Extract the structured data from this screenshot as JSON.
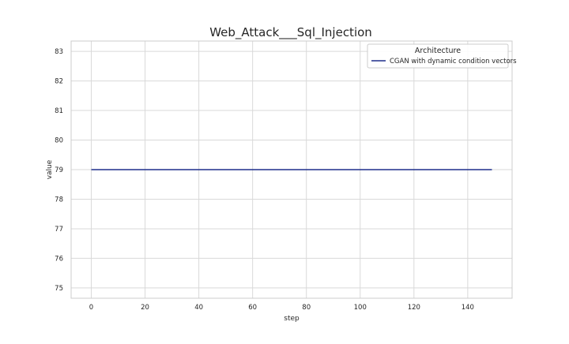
{
  "chart_data": {
    "type": "line",
    "title": "Web_Attack___Sql_Injection",
    "xlabel": "step",
    "ylabel": "value",
    "xlim": [
      -7.5,
      156.5
    ],
    "ylim": [
      74.65,
      83.35
    ],
    "xticks": [
      0,
      20,
      40,
      60,
      80,
      100,
      120,
      140
    ],
    "yticks": [
      75,
      76,
      77,
      78,
      79,
      80,
      81,
      82,
      83
    ],
    "grid": true,
    "legend": {
      "title": "Architecture",
      "position": "top-right"
    },
    "series": [
      {
        "name": "CGAN with dynamic condition vectors",
        "color": "#1f2f8c",
        "x": [
          0,
          149
        ],
        "y": [
          79,
          79
        ]
      }
    ]
  }
}
